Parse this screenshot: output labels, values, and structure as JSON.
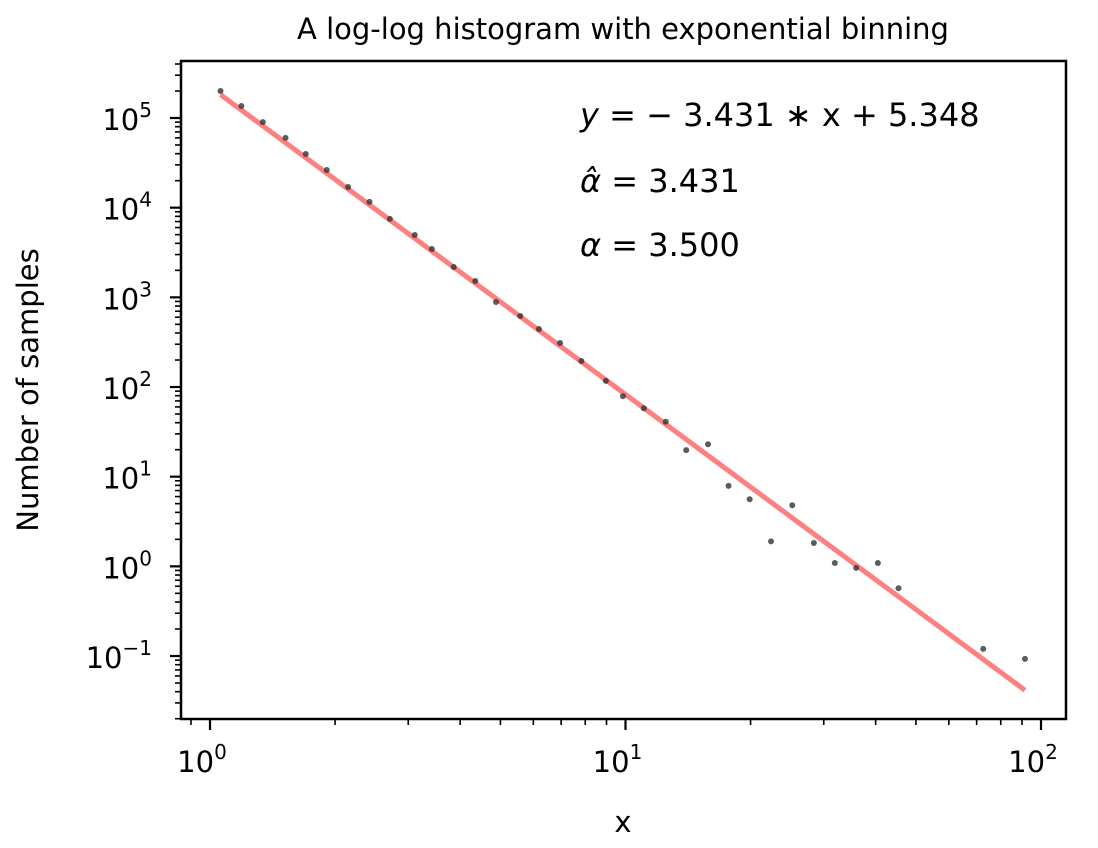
{
  "chart_data": {
    "type": "scatter",
    "title": "A log-log histogram with exponential binning",
    "xlabel": "x",
    "ylabel": "Number of samples",
    "xscale": "log",
    "yscale": "log",
    "xlim": [
      0.85,
      114
    ],
    "ylim": [
      0.02,
      430000
    ],
    "grid": false,
    "legend": null,
    "x_ticks": [
      {
        "base": "10",
        "exp": "0",
        "value": 1
      },
      {
        "base": "10",
        "exp": "1",
        "value": 10
      },
      {
        "base": "10",
        "exp": "2",
        "value": 100
      }
    ],
    "y_ticks": [
      {
        "base": "10",
        "exp": "5",
        "value": 100000
      },
      {
        "base": "10",
        "exp": "4",
        "value": 10000
      },
      {
        "base": "10",
        "exp": "3",
        "value": 1000
      },
      {
        "base": "10",
        "exp": "2",
        "value": 100
      },
      {
        "base": "10",
        "exp": "1",
        "value": 10
      },
      {
        "base": "10",
        "exp": "0",
        "value": 1
      },
      {
        "base": "10",
        "exp": "−1",
        "value": 0.1
      }
    ],
    "series": [
      {
        "name": "histogram bins",
        "kind": "scatter",
        "color": "#333333",
        "x": [
          1.06,
          1.19,
          1.34,
          1.52,
          1.7,
          1.91,
          2.15,
          2.42,
          2.71,
          3.11,
          3.42,
          3.86,
          4.35,
          4.88,
          5.58,
          6.19,
          6.96,
          7.83,
          8.97,
          9.86,
          11.07,
          12.5,
          14.0,
          15.8,
          17.7,
          19.9,
          22.4,
          25.2,
          28.4,
          31.9,
          35.9,
          40.5,
          45.4,
          72.6,
          91.5
        ],
        "y": [
          200000,
          136000,
          90000,
          60000,
          39700,
          26300,
          17000,
          11600,
          7500,
          4960,
          3460,
          2180,
          1520,
          887,
          619,
          443,
          310,
          195,
          117,
          79,
          58,
          41,
          19.8,
          23,
          7.9,
          5.6,
          1.9,
          4.8,
          1.82,
          1.09,
          0.96,
          1.09,
          0.57,
          0.12,
          0.093
        ]
      },
      {
        "name": "fit",
        "kind": "line",
        "color": "#ff0000",
        "alpha": 0.5,
        "slope": -3.431,
        "intercept": 5.348,
        "x": [
          1.06,
          91.5
        ]
      }
    ],
    "annotations": [
      {
        "prefix": "y",
        "text": " = − 3.431 ∗ x + 5.348"
      },
      {
        "prefix": "α̂",
        "text": " = 3.431"
      },
      {
        "prefix": "α",
        "text": " = 3.500"
      }
    ]
  }
}
